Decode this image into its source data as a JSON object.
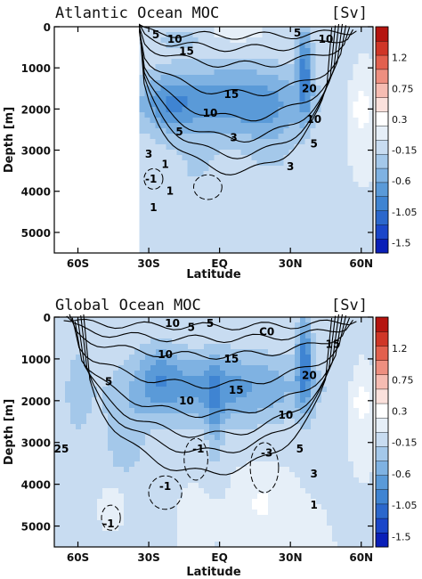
{
  "chart_data": [
    {
      "type": "heatmap",
      "title": "Atlantic Ocean MOC",
      "units_label": "[Sv]",
      "xlabel": "Latitude",
      "ylabel": "Depth [m]",
      "x_ticks": [
        "60S",
        "30S",
        "EQ",
        "30N",
        "60N"
      ],
      "x_tick_values": [
        -60,
        -30,
        0,
        30,
        60
      ],
      "y_ticks": [
        "0",
        "1000",
        "2000",
        "3000",
        "4000",
        "5000"
      ],
      "y_tick_values": [
        0,
        1000,
        2000,
        3000,
        4000,
        5000
      ],
      "xlim": [
        -70,
        65
      ],
      "ylim": [
        5500,
        0
      ],
      "data_start_lat": -34,
      "contour_labels": [
        {
          "text": "5",
          "lat": -27,
          "depth": 200
        },
        {
          "text": "10",
          "lat": -19,
          "depth": 300
        },
        {
          "text": "15",
          "lat": -14,
          "depth": 600
        },
        {
          "text": "5",
          "lat": 33,
          "depth": 150
        },
        {
          "text": "10",
          "lat": 45,
          "depth": 300
        },
        {
          "text": "20",
          "lat": 38,
          "depth": 1500
        },
        {
          "text": "15",
          "lat": 5,
          "depth": 1650
        },
        {
          "text": "10",
          "lat": -4,
          "depth": 2100
        },
        {
          "text": "10",
          "lat": 40,
          "depth": 2250
        },
        {
          "text": "5",
          "lat": -17,
          "depth": 2550
        },
        {
          "text": "3",
          "lat": 6,
          "depth": 2700
        },
        {
          "text": "5",
          "lat": 40,
          "depth": 2850
        },
        {
          "text": "3",
          "lat": -30,
          "depth": 3100
        },
        {
          "text": "1",
          "lat": -23,
          "depth": 3350
        },
        {
          "text": "3",
          "lat": 30,
          "depth": 3400
        },
        {
          "text": "-1",
          "lat": -29,
          "depth": 3700
        },
        {
          "text": "1",
          "lat": -21,
          "depth": 4000
        },
        {
          "text": "1",
          "lat": -28,
          "depth": 4400
        }
      ]
    },
    {
      "type": "heatmap",
      "title": "Global Ocean MOC",
      "units_label": "[Sv]",
      "xlabel": "Latitude",
      "ylabel": "Depth [m]",
      "x_ticks": [
        "60S",
        "30S",
        "EQ",
        "30N",
        "60N"
      ],
      "x_tick_values": [
        -60,
        -30,
        0,
        30,
        60
      ],
      "y_ticks": [
        "0",
        "1000",
        "2000",
        "3000",
        "4000",
        "5000"
      ],
      "y_tick_values": [
        0,
        1000,
        2000,
        3000,
        4000,
        5000
      ],
      "xlim": [
        -70,
        65
      ],
      "ylim": [
        5500,
        0
      ],
      "data_start_lat": -70,
      "contour_labels": [
        {
          "text": "10",
          "lat": -20,
          "depth": 150
        },
        {
          "text": "5",
          "lat": -12,
          "depth": 250
        },
        {
          "text": "5",
          "lat": -4,
          "depth": 150
        },
        {
          "text": "C0",
          "lat": 20,
          "depth": 350
        },
        {
          "text": "15",
          "lat": 48,
          "depth": 650
        },
        {
          "text": "10",
          "lat": -23,
          "depth": 900
        },
        {
          "text": "15",
          "lat": 5,
          "depth": 1000
        },
        {
          "text": "20",
          "lat": 38,
          "depth": 1400
        },
        {
          "text": "5",
          "lat": -47,
          "depth": 1550
        },
        {
          "text": "15",
          "lat": 7,
          "depth": 1750
        },
        {
          "text": "10",
          "lat": -14,
          "depth": 2000
        },
        {
          "text": "10",
          "lat": 28,
          "depth": 2350
        },
        {
          "text": "25",
          "lat": -67,
          "depth": 3150
        },
        {
          "text": "5",
          "lat": 34,
          "depth": 3150
        },
        {
          "text": "-1",
          "lat": -9,
          "depth": 3150
        },
        {
          "text": "-3",
          "lat": 20,
          "depth": 3250
        },
        {
          "text": "3",
          "lat": 40,
          "depth": 3750
        },
        {
          "text": "-1",
          "lat": -23,
          "depth": 4050
        },
        {
          "text": "-1",
          "lat": -47,
          "depth": 4950
        },
        {
          "text": "1",
          "lat": 40,
          "depth": 4500
        }
      ]
    }
  ],
  "colorbar": {
    "labels": [
      "1.2",
      "0.75",
      "0.3",
      "-0.15",
      "-0.6",
      "-1.05",
      "-1.5"
    ],
    "label_values": [
      1.2,
      0.75,
      0.3,
      -0.15,
      -0.6,
      -1.05,
      -1.5
    ],
    "range": [
      -1.65,
      1.65
    ],
    "colors": [
      "#0a1fb8",
      "#1a46c9",
      "#2b67cc",
      "#3f84d2",
      "#5a9ad8",
      "#7fb2e2",
      "#a4c8ea",
      "#c8dcf1",
      "#e6eff8",
      "#ffffff",
      "#fbe1dc",
      "#f6bcb2",
      "#ee8f80",
      "#e2604e",
      "#cf3627",
      "#b5140f"
    ]
  }
}
